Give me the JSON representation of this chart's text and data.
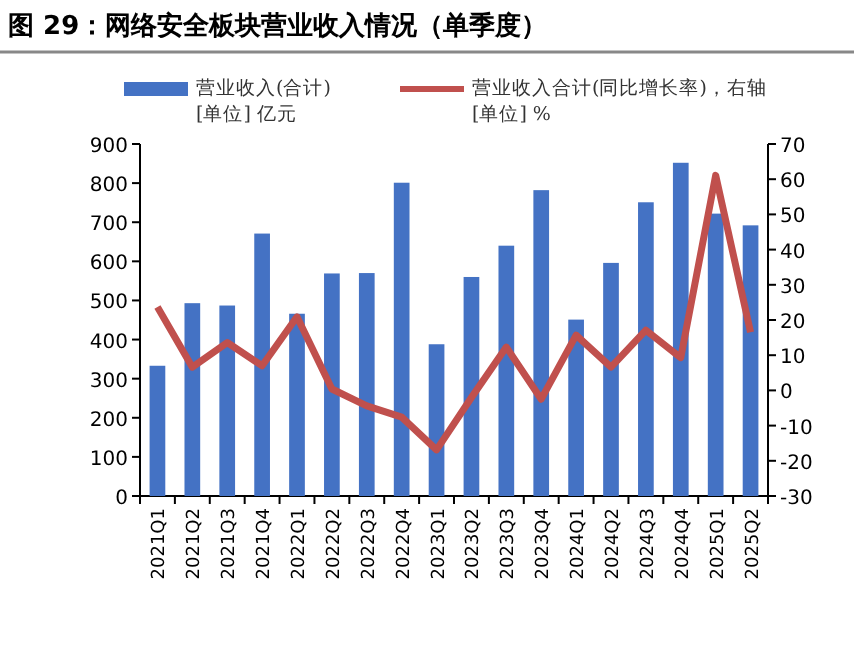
{
  "chart_data": {
    "type": "bar",
    "title": "图 29：网络安全板块营业收入情况（单季度）",
    "categories": [
      "2021Q1",
      "2021Q2",
      "2021Q3",
      "2021Q4",
      "2022Q1",
      "2022Q2",
      "2022Q3",
      "2022Q4",
      "2023Q1",
      "2023Q2",
      "2023Q3",
      "2023Q4",
      "2024Q1",
      "2024Q2",
      "2024Q3",
      "2024Q4",
      "2025Q1",
      "2025Q2"
    ],
    "series": [
      {
        "name": "营业收入(合计)\n[单位] 亿元",
        "color": "#4472c4",
        "values": [
          333,
          493,
          487,
          671,
          466,
          569,
          570,
          801,
          388,
          560,
          640,
          782,
          451,
          596,
          751,
          852,
          722,
          692
        ]
      },
      {
        "name": "营业收入合计(同比增长率)，右轴\n[单位] %",
        "type": "line",
        "axis": "y2",
        "color": "#c0504d",
        "values": [
          23.7,
          6.6,
          13.6,
          7.0,
          20.9,
          0.4,
          -4.4,
          -7.6,
          -16.9,
          -2,
          12.3,
          -2.5,
          15.7,
          6.6,
          17.1,
          9.3,
          61.1,
          16.5
        ]
      }
    ],
    "ylim": [
      0,
      900
    ],
    "yticks": [
      0,
      100,
      200,
      300,
      400,
      500,
      600,
      700,
      800,
      900
    ],
    "y2lim": [
      -30,
      70
    ],
    "y2ticks": [
      -30,
      -20,
      -10,
      0,
      10,
      20,
      30,
      40,
      50,
      60,
      70
    ],
    "grid": false,
    "legend": "top",
    "marker": "none"
  }
}
